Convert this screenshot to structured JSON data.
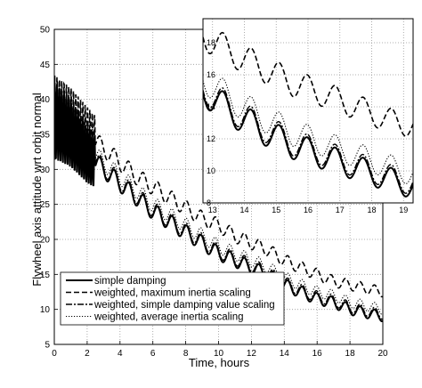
{
  "chart_data": [
    {
      "id": "main",
      "type": "line",
      "xlabel": "Time, hours",
      "ylabel": "Flywheel axis attitude wrt orbit normal",
      "xlim": [
        0,
        20
      ],
      "ylim": [
        5,
        50
      ],
      "xticks": [
        0,
        2,
        4,
        6,
        8,
        10,
        12,
        14,
        16,
        18,
        20
      ],
      "yticks": [
        5,
        10,
        15,
        20,
        25,
        30,
        35,
        40,
        45,
        50
      ],
      "grid": true,
      "legend_position": "bottom-left",
      "series": [
        {
          "name": "simple damping",
          "style": "solid",
          "color": "#000000",
          "x": [
            0,
            1,
            2,
            3,
            4,
            5,
            6,
            7,
            8,
            9,
            10,
            11,
            12,
            13,
            14,
            15,
            16,
            17,
            18,
            19,
            20
          ],
          "y": [
            37,
            35,
            32,
            30,
            28,
            26,
            24,
            22.5,
            21,
            19.5,
            18,
            17,
            16,
            15,
            13.5,
            12.5,
            11.5,
            11,
            10,
            9.5,
            9
          ]
        },
        {
          "name": "weighted, maximum inertia scaling",
          "style": "dashed",
          "color": "#000000",
          "x": [
            0,
            1,
            2,
            3,
            4,
            5,
            6,
            7,
            8,
            9,
            10,
            11,
            12,
            13,
            14,
            15,
            16,
            17,
            18,
            19,
            20
          ],
          "y": [
            38,
            37,
            35,
            33,
            31,
            29,
            27.5,
            26,
            24.5,
            23,
            22,
            20.5,
            19.5,
            18.5,
            17,
            16,
            15,
            14,
            13.5,
            13,
            12.5
          ]
        },
        {
          "name": "weighted, simple damping value scaling",
          "style": "dashdot",
          "color": "#000000",
          "x": [
            0,
            1,
            2,
            3,
            4,
            5,
            6,
            7,
            8,
            9,
            10,
            11,
            12,
            13,
            14,
            15,
            16,
            17,
            18,
            19,
            20
          ],
          "y": [
            37.3,
            35.3,
            32.3,
            30.3,
            28.3,
            26.3,
            24.3,
            22.8,
            21.3,
            19.8,
            18.3,
            17.3,
            16.3,
            15.3,
            13.8,
            12.8,
            11.8,
            11.3,
            10.3,
            9.8,
            9.3
          ]
        },
        {
          "name": "weighted, average inertia scaling",
          "style": "dotted",
          "color": "#000000",
          "x": [
            0,
            1,
            2,
            3,
            4,
            5,
            6,
            7,
            8,
            9,
            10,
            11,
            12,
            13,
            14,
            15,
            16,
            17,
            18,
            19,
            20
          ],
          "y": [
            38,
            36,
            33,
            31,
            29,
            27,
            25,
            23.5,
            22,
            20.5,
            19,
            18,
            17,
            16,
            14.5,
            13.5,
            12.5,
            12,
            11,
            10.5,
            10
          ]
        }
      ]
    },
    {
      "id": "inset",
      "type": "line",
      "xlim": [
        12.7,
        19.3
      ],
      "ylim": [
        8,
        19.5
      ],
      "xticks": [
        13,
        14,
        15,
        16,
        17,
        18,
        19
      ],
      "yticks": [
        8,
        10,
        12,
        14,
        16,
        18
      ],
      "grid": true,
      "series": [
        {
          "name": "simple damping",
          "style": "solid",
          "color": "#000000",
          "x": [
            12.7,
            13.5,
            14.5,
            15.5,
            16.5,
            17.5,
            18.5,
            19.3
          ],
          "y": [
            15.0,
            13.8,
            12.6,
            11.6,
            10.9,
            10.2,
            9.5,
            9.0
          ]
        },
        {
          "name": "weighted, maximum inertia scaling",
          "style": "dashed",
          "color": "#000000",
          "x": [
            12.7,
            13.5,
            14.5,
            15.5,
            16.5,
            17.5,
            18.5,
            19.3
          ],
          "y": [
            18.5,
            17.5,
            16.5,
            15.5,
            14.8,
            14.0,
            13.2,
            12.8
          ]
        },
        {
          "name": "weighted, simple damping value scaling",
          "style": "dashdot",
          "color": "#000000",
          "x": [
            12.7,
            13.5,
            14.5,
            15.5,
            16.5,
            17.5,
            18.5,
            19.3
          ],
          "y": [
            15.2,
            14.0,
            12.8,
            11.8,
            11.1,
            10.4,
            9.7,
            9.2
          ]
        },
        {
          "name": "weighted, average inertia scaling",
          "style": "dotted",
          "color": "#000000",
          "x": [
            12.7,
            13.5,
            14.5,
            15.5,
            16.5,
            17.5,
            18.5,
            19.3
          ],
          "y": [
            15.8,
            14.6,
            13.4,
            12.4,
            11.7,
            11.0,
            10.3,
            9.8
          ]
        }
      ]
    }
  ]
}
